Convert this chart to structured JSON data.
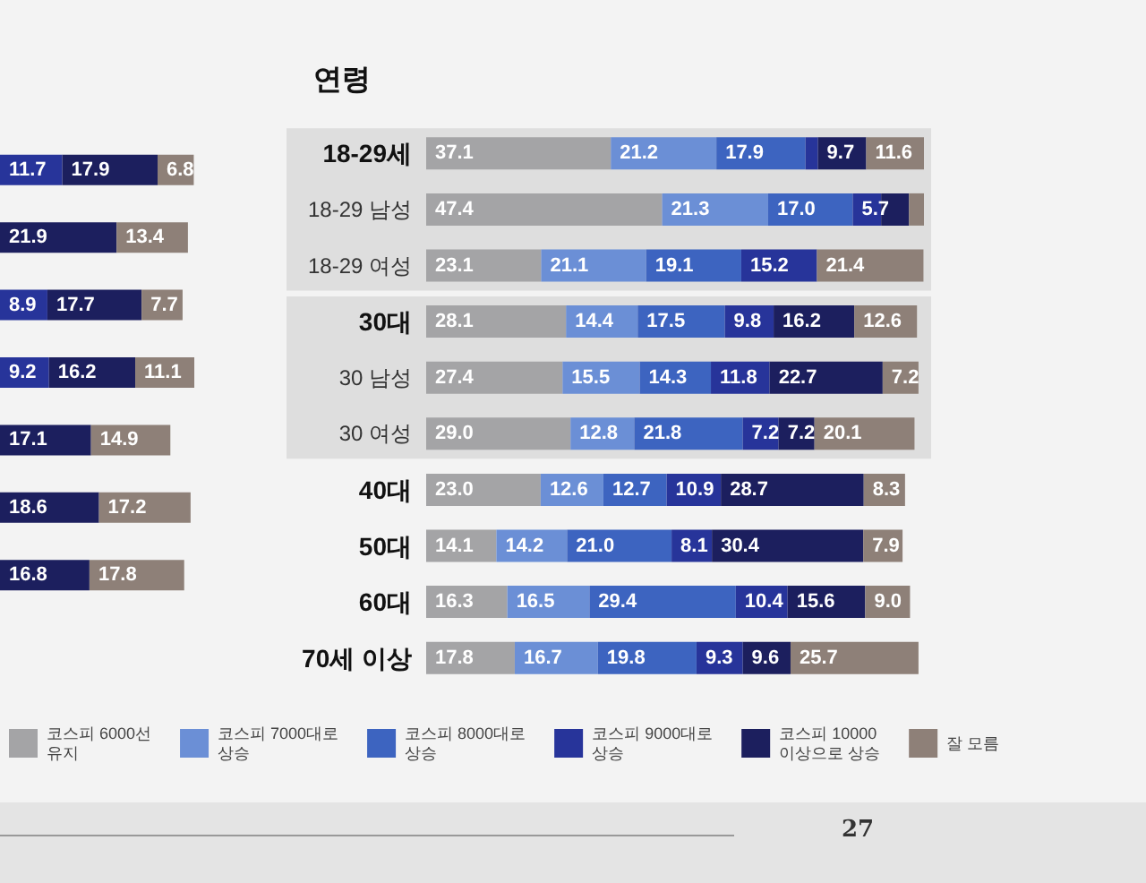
{
  "chart_data": [
    {
      "type": "bar",
      "orientation": "horizontal",
      "stacked": true,
      "categories": [
        null,
        null,
        null,
        null,
        null,
        null,
        null
      ],
      "xlim": [
        0,
        37
      ],
      "tick_labels": false,
      "legend": false,
      "data_labels": true,
      "series": [
        {
          "color": "#27349a",
          "values": [
            11.7,
            null,
            8.9,
            9.2,
            null,
            null,
            null
          ]
        },
        {
          "color": "#1c1f5e",
          "values": [
            17.9,
            21.9,
            17.7,
            16.2,
            17.1,
            18.6,
            16.8
          ]
        },
        {
          "color": "#8e8078",
          "values": [
            6.8,
            13.4,
            7.7,
            11.1,
            14.9,
            17.2,
            17.8
          ]
        }
      ]
    },
    {
      "type": "bar",
      "orientation": "horizontal",
      "stacked": true,
      "title": "연령",
      "categories": [
        "18-29세",
        "18-29 남성",
        "18-29 여성",
        "30대",
        "30 남성",
        "30 여성",
        "40대",
        "50대",
        "60대",
        "70세 이상"
      ],
      "xlim": [
        0,
        100
      ],
      "tick_labels": "y",
      "legend": "bottom",
      "annotations": [
        "27"
      ],
      "series": [
        {
          "name": "코스피 6000선\n유지",
          "color": "#a4a4a6",
          "values": [
            37.1,
            47.4,
            23.1,
            28.1,
            27.4,
            29.0,
            23.0,
            14.1,
            16.3,
            17.8
          ],
          "value_labels": [
            "37.1",
            "47.4",
            "23.1",
            "28.1",
            "27.4",
            "29.0",
            "23.0",
            "14.1",
            "16.3",
            "17.8"
          ]
        },
        {
          "name": "코스피 7000대로\n상승",
          "color": "#6b8fd6",
          "values": [
            21.2,
            21.3,
            21.1,
            14.4,
            15.5,
            12.8,
            12.6,
            14.2,
            16.5,
            16.7
          ],
          "value_labels": [
            "21.2",
            "21.3",
            "21.1",
            "14.4",
            "15.5",
            "12.8",
            "12.6",
            "14.2",
            "16.5",
            "16.7"
          ]
        },
        {
          "name": "코스피 8000대로\n상승",
          "color": "#3d64c0",
          "values": [
            17.9,
            17.0,
            19.1,
            17.5,
            14.3,
            21.8,
            12.7,
            21.0,
            29.4,
            19.8
          ],
          "value_labels": [
            "17.9",
            "17.0",
            "19.1",
            "17.5",
            "14.3",
            "21.8",
            "12.7",
            "21.0",
            "29.4",
            "19.8"
          ]
        },
        {
          "name": "코스피 9000대로\n상승",
          "color": "#27349a",
          "values": [
            2.5,
            5.7,
            15.2,
            9.8,
            11.8,
            7.2,
            10.9,
            8.1,
            10.4,
            9.3
          ],
          "value_labels": [
            null,
            "5.7",
            "15.2",
            "9.8",
            "11.8",
            "7.2",
            "10.9",
            "8.1",
            "10.4",
            "9.3"
          ]
        },
        {
          "name": "코스피 10000\n이상으로 상승",
          "color": "#1c1f5e",
          "values": [
            9.7,
            5.6,
            null,
            16.2,
            22.7,
            7.2,
            28.7,
            30.4,
            15.6,
            9.6
          ],
          "value_labels": [
            "9.7",
            null,
            null,
            "16.2",
            "22.7",
            "7.2",
            "28.7",
            "30.4",
            "15.6",
            "9.6"
          ]
        },
        {
          "name": "잘 모름",
          "color": "#8e8078",
          "values": [
            11.6,
            3.0,
            21.4,
            12.6,
            7.2,
            20.1,
            8.3,
            7.9,
            9.0,
            25.7
          ],
          "value_labels": [
            "11.6",
            null,
            "21.4",
            "12.6",
            "7.2",
            "20.1",
            "8.3",
            "7.9",
            "9.0",
            "25.7"
          ]
        }
      ]
    }
  ]
}
